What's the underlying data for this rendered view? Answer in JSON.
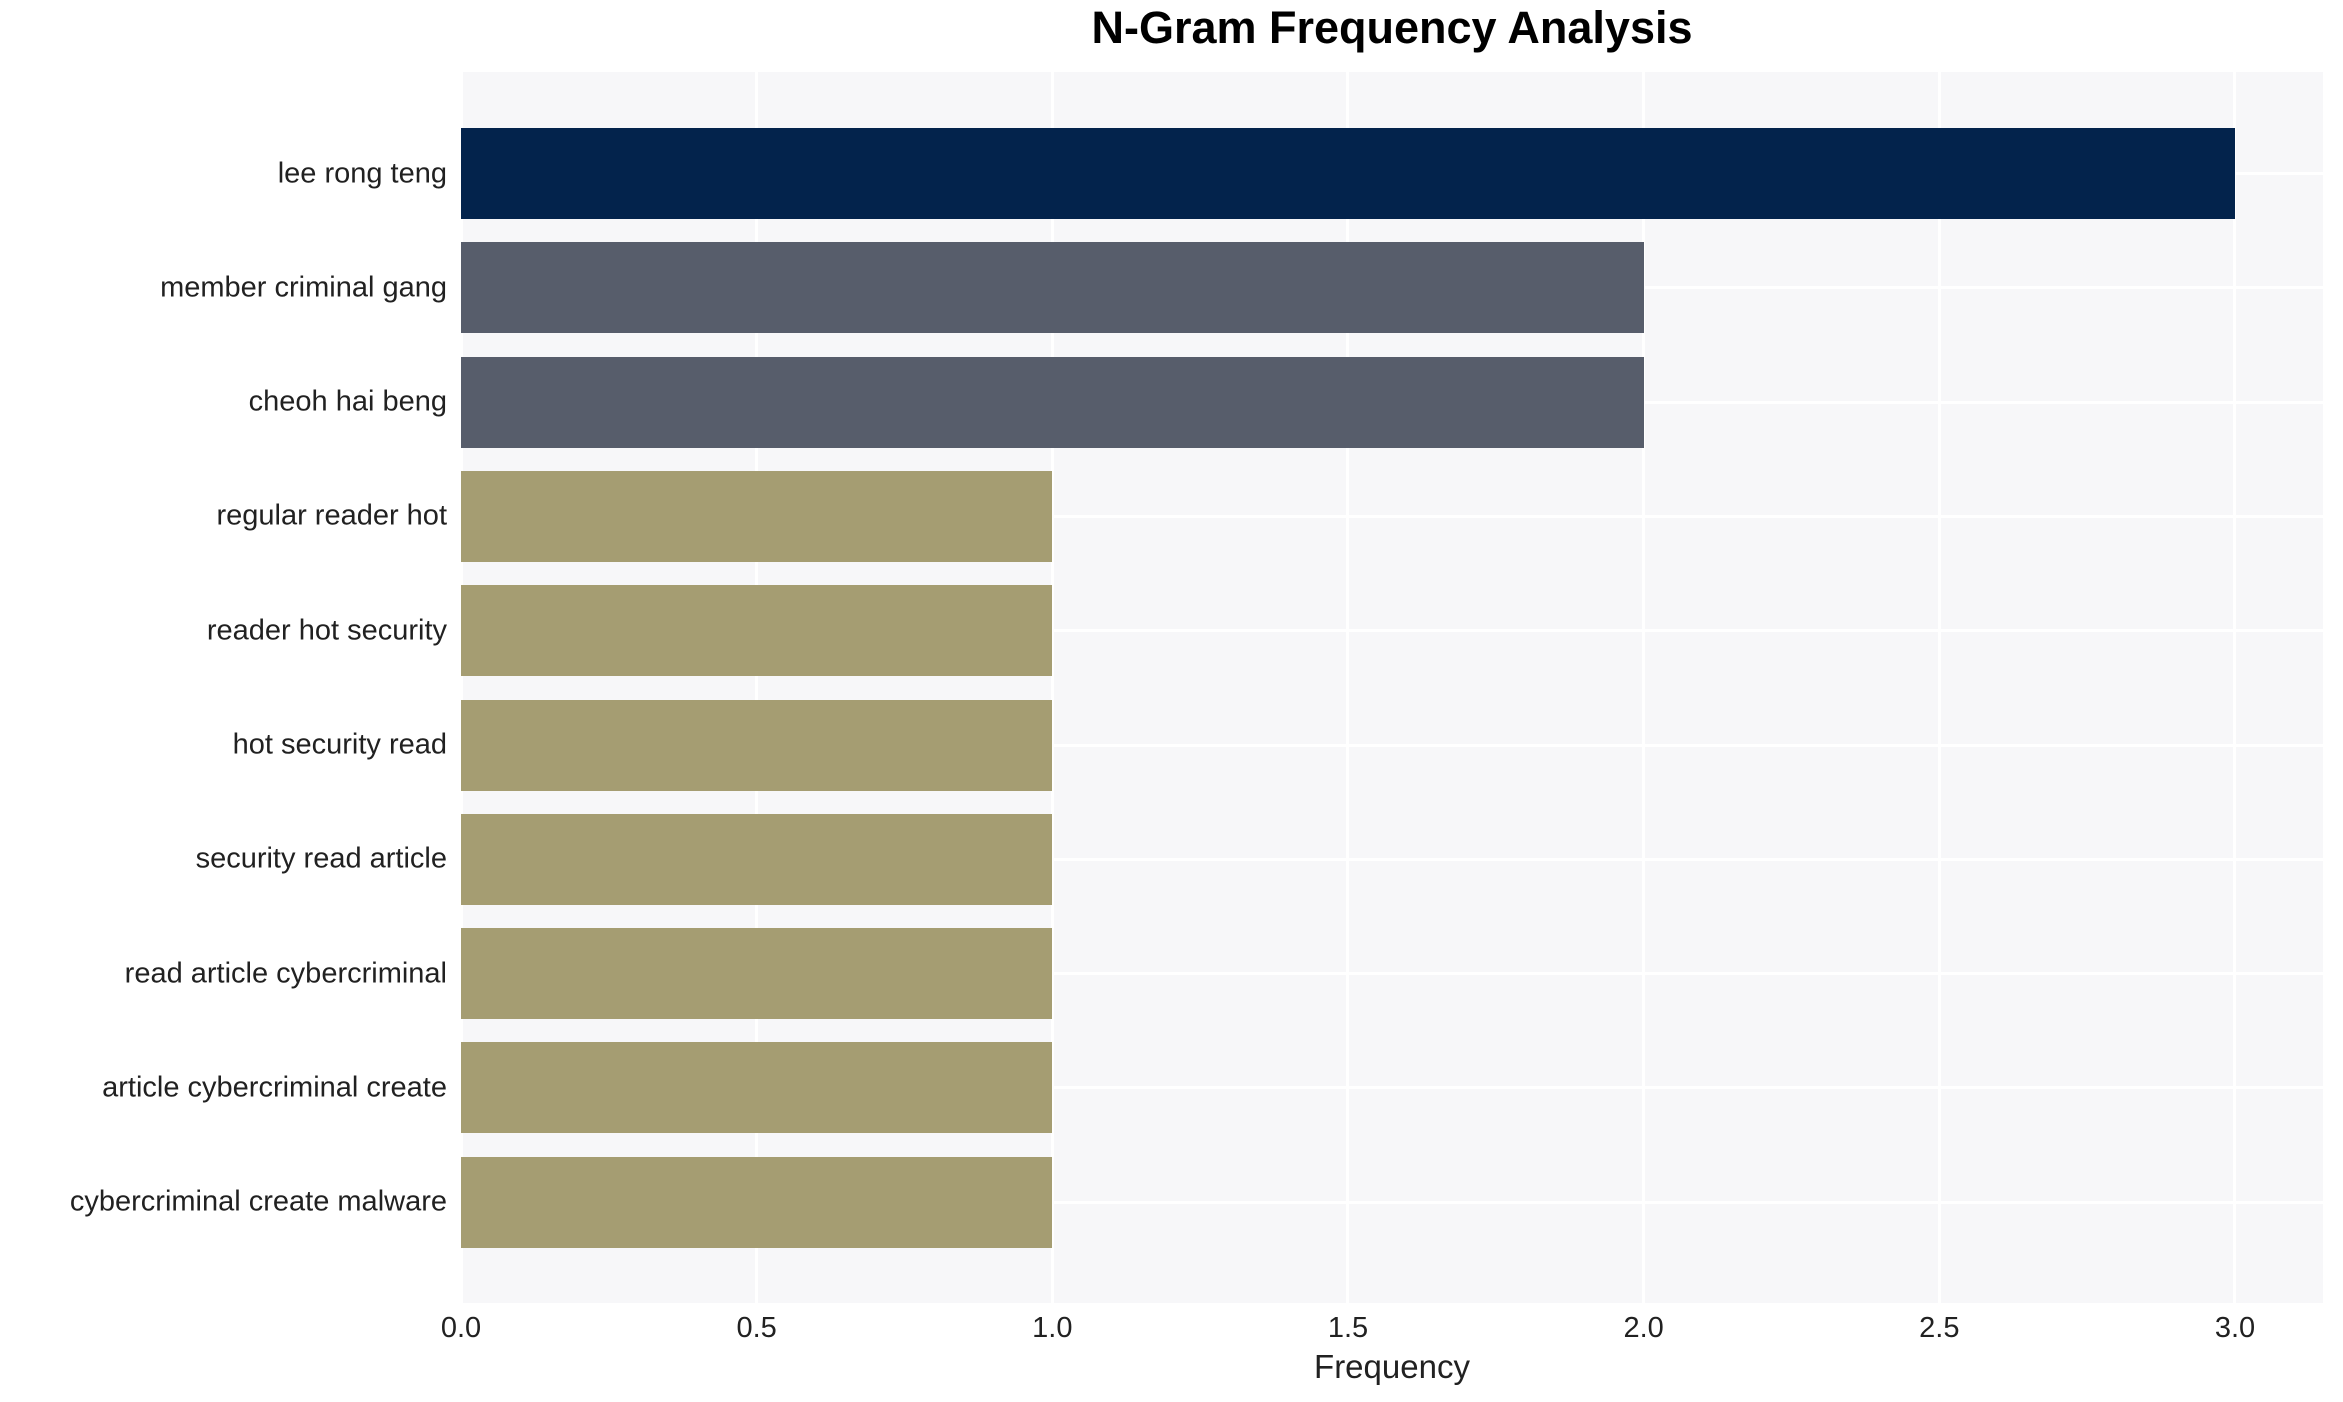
{
  "chart_data": {
    "type": "bar",
    "orientation": "horizontal",
    "title": "N-Gram Frequency Analysis",
    "xlabel": "Frequency",
    "ylabel": "",
    "categories": [
      "lee rong teng",
      "member criminal gang",
      "cheoh hai beng",
      "regular reader hot",
      "reader hot security",
      "hot security read",
      "security read article",
      "read article cybercriminal",
      "article cybercriminal create",
      "cybercriminal create malware"
    ],
    "values": [
      3,
      2,
      2,
      1,
      1,
      1,
      1,
      1,
      1,
      1
    ],
    "bar_colors": [
      "#03234C",
      "#575D6B",
      "#575D6B",
      "#A59D72",
      "#A59D72",
      "#A59D72",
      "#A59D72",
      "#A59D72",
      "#A59D72",
      "#A59D72"
    ],
    "xticks": [
      "0.0",
      "0.5",
      "1.0",
      "1.5",
      "2.0",
      "2.5",
      "3.0"
    ],
    "xtick_values": [
      0,
      0.5,
      1,
      1.5,
      2,
      2.5,
      3
    ],
    "xlim": [
      0,
      3.15
    ],
    "grid": true,
    "legend_position": "none",
    "plot_background_color": "#F7F7F9",
    "gridline_color": "#FFFFFF",
    "text_color": "#212121",
    "title_color": "#000000"
  }
}
